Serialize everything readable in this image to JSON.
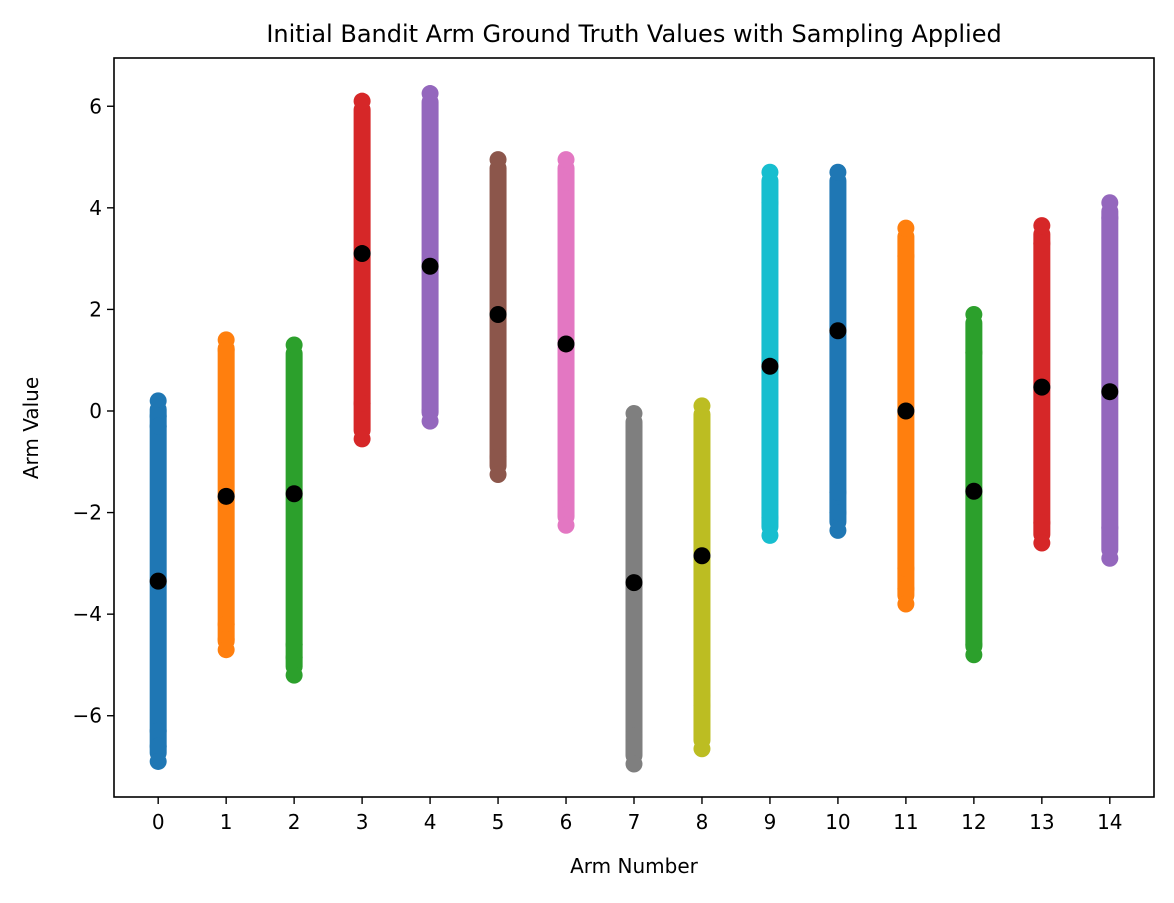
{
  "chart_data": {
    "type": "scatter",
    "title": "Initial Bandit Arm Ground Truth Values with Sampling Applied",
    "xlabel": "Arm Number",
    "ylabel": "Arm Value",
    "xlim": [
      -0.65,
      14.65
    ],
    "ylim": [
      -7.6,
      6.95
    ],
    "x_ticks": [
      0,
      1,
      2,
      3,
      4,
      5,
      6,
      7,
      8,
      9,
      10,
      11,
      12,
      13,
      14
    ],
    "y_ticks": [
      -6,
      -4,
      -2,
      0,
      2,
      4,
      6
    ],
    "y_tick_labels": [
      "−6",
      "−4",
      "−2",
      "0",
      "2",
      "4",
      "6"
    ],
    "grid": false,
    "legend": "none",
    "series": [
      {
        "x": 0,
        "color": "#1f77b4",
        "true_value": -3.35,
        "samples_range": [
          -6.9,
          0.2
        ],
        "outliers": [
          0.2,
          -0.1,
          -0.3,
          -6.3,
          -6.6,
          -6.9
        ]
      },
      {
        "x": 1,
        "color": "#ff7f0e",
        "true_value": -1.68,
        "samples_range": [
          -4.7,
          1.4
        ],
        "outliers": [
          1.4,
          1.2,
          -4.2,
          -4.5,
          -4.7
        ]
      },
      {
        "x": 2,
        "color": "#2ca02c",
        "true_value": -1.63,
        "samples_range": [
          -5.2,
          1.3
        ],
        "outliers": [
          1.3,
          -4.6,
          -4.85,
          -5.2
        ]
      },
      {
        "x": 3,
        "color": "#d62728",
        "true_value": 3.1,
        "samples_range": [
          -0.55,
          6.1
        ],
        "outliers": [
          6.1,
          0.15,
          -0.55
        ]
      },
      {
        "x": 4,
        "color": "#9467bd",
        "true_value": 2.85,
        "samples_range": [
          -0.2,
          6.25
        ],
        "outliers": [
          6.25,
          0.0,
          -0.2
        ]
      },
      {
        "x": 5,
        "color": "#8c564b",
        "true_value": 1.9,
        "samples_range": [
          -1.25,
          4.95
        ],
        "outliers": [
          4.95,
          -0.9,
          -1.25
        ]
      },
      {
        "x": 6,
        "color": "#e377c2",
        "true_value": 1.32,
        "samples_range": [
          -2.25,
          4.95
        ],
        "outliers": [
          4.95,
          4.5,
          -1.6,
          -2.05,
          -2.25
        ]
      },
      {
        "x": 7,
        "color": "#7f7f7f",
        "true_value": -3.38,
        "samples_range": [
          -6.95,
          -0.05
        ],
        "outliers": [
          -0.05,
          -0.3,
          -6.4,
          -6.95
        ]
      },
      {
        "x": 8,
        "color": "#bcbd22",
        "true_value": -2.85,
        "samples_range": [
          -6.65,
          0.1
        ],
        "outliers": [
          0.1,
          -5.6,
          -5.8,
          -6.65
        ]
      },
      {
        "x": 9,
        "color": "#17becf",
        "true_value": 0.88,
        "samples_range": [
          -2.45,
          4.7
        ],
        "outliers": [
          4.7,
          4.1,
          -2.1,
          -2.45
        ]
      },
      {
        "x": 10,
        "color": "#1f77b4",
        "true_value": 1.58,
        "samples_range": [
          -2.35,
          4.7
        ],
        "outliers": [
          4.7,
          -1.6,
          -2.0,
          -2.35
        ]
      },
      {
        "x": 11,
        "color": "#ff7f0e",
        "true_value": 0.0,
        "samples_range": [
          -3.8,
          3.6
        ],
        "outliers": [
          3.6,
          3.05,
          -3.1,
          -3.5,
          -3.8
        ]
      },
      {
        "x": 12,
        "color": "#2ca02c",
        "true_value": -1.58,
        "samples_range": [
          -4.8,
          1.9
        ],
        "outliers": [
          1.9,
          1.15,
          -4.6,
          -4.8
        ]
      },
      {
        "x": 13,
        "color": "#d62728",
        "true_value": 0.47,
        "samples_range": [
          -2.6,
          3.65
        ],
        "outliers": [
          3.65,
          3.3,
          -2.2,
          -2.6
        ]
      },
      {
        "x": 14,
        "color": "#9467bd",
        "true_value": 0.38,
        "samples_range": [
          -2.9,
          4.1
        ],
        "outliers": [
          4.1,
          3.8,
          -2.3,
          -2.9
        ]
      }
    ],
    "true_value_marker_color": "#000000"
  }
}
